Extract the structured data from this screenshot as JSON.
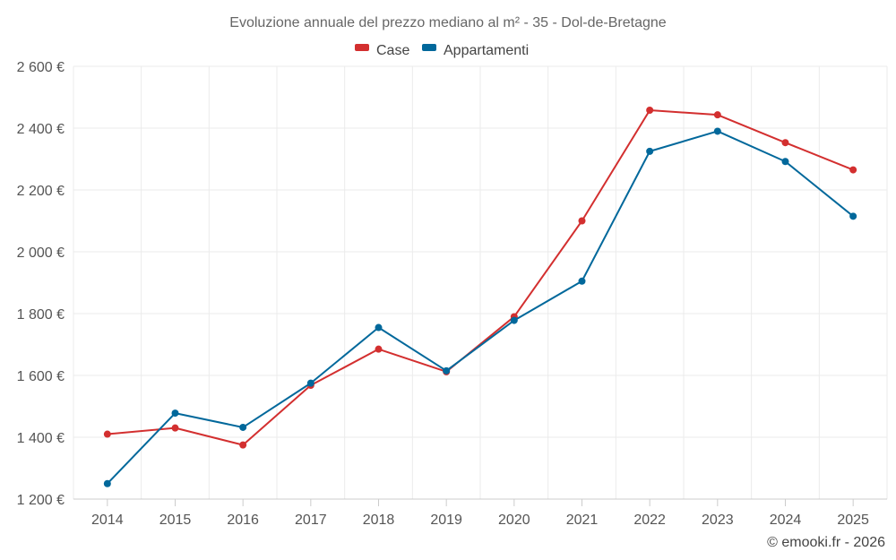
{
  "chart_data": {
    "type": "line",
    "title": "Evoluzione annuale del prezzo mediano al m² - 35 - Dol-de-Bretagne",
    "xlabel": "",
    "ylabel": "",
    "categories": [
      "2014",
      "2015",
      "2016",
      "2017",
      "2018",
      "2019",
      "2020",
      "2021",
      "2022",
      "2023",
      "2024",
      "2025"
    ],
    "ylim": [
      1200,
      2600
    ],
    "yticks": [
      1200,
      1400,
      1600,
      1800,
      2000,
      2200,
      2400,
      2600
    ],
    "ytick_labels": [
      "1 200 €",
      "1 400 €",
      "1 600 €",
      "1 800 €",
      "2 000 €",
      "2 200 €",
      "2 400 €",
      "2 600 €"
    ],
    "grid": true,
    "legend_position": "top-center",
    "series": [
      {
        "name": "Case",
        "color": "#d32f2f",
        "values": [
          1410,
          1430,
          1375,
          1568,
          1685,
          1612,
          1790,
          2100,
          2458,
          2443,
          2353,
          2265
        ]
      },
      {
        "name": "Appartamenti",
        "color": "#01689b",
        "values": [
          1250,
          1478,
          1432,
          1575,
          1755,
          1615,
          1778,
          1905,
          2325,
          2390,
          2292,
          2115
        ]
      }
    ]
  },
  "credit": "© emooki.fr - 2026"
}
